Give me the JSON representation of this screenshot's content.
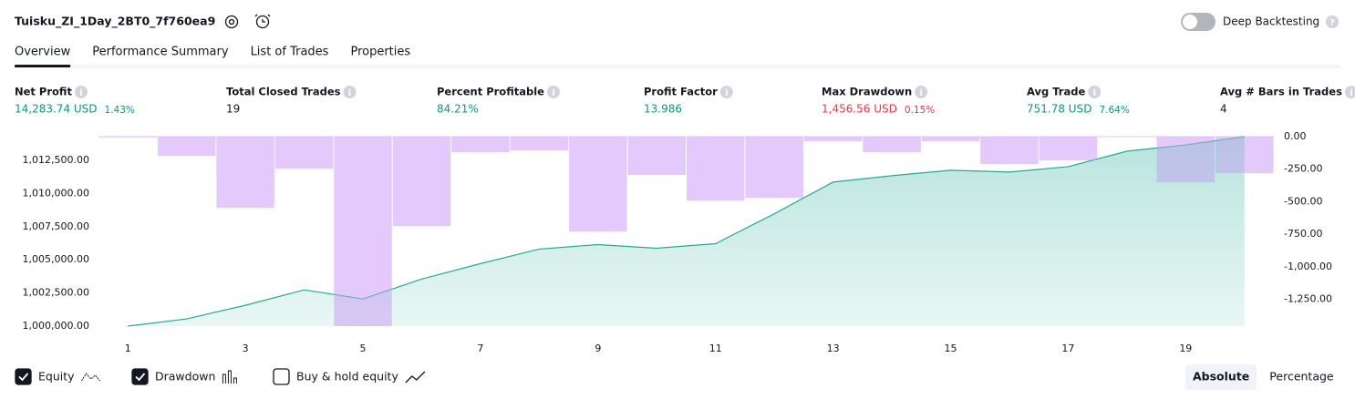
{
  "header": {
    "title": "Tuisku_ZI_1Day_2BT0_7f760ea9",
    "toggle_label": "Deep Backtesting"
  },
  "tabs": [
    "Overview",
    "Performance Summary",
    "List of Trades",
    "Properties"
  ],
  "active_tab": 0,
  "metrics": [
    {
      "label": "Net Profit",
      "value": "14,283.74 USD",
      "percent": "1.43%",
      "color": "#089981"
    },
    {
      "label": "Total Closed Trades",
      "value": "19",
      "color": "#131722"
    },
    {
      "label": "Percent Profitable",
      "value": "84.21%",
      "color": "#089981"
    },
    {
      "label": "Profit Factor",
      "value": "13.986",
      "color": "#089981"
    },
    {
      "label": "Max Drawdown",
      "value": "1,456.56 USD",
      "percent": "0.15%",
      "color": "#f23645"
    },
    {
      "label": "Avg Trade",
      "value": "751.78 USD",
      "percent": "7.64%",
      "color": "#089981"
    },
    {
      "label": "Avg # Bars in Trades",
      "value": "4",
      "color": "#131722"
    }
  ],
  "chart_data": {
    "type": "combo",
    "categories": [
      "1",
      null,
      "3",
      null,
      "5",
      null,
      "7",
      null,
      "9",
      null,
      "11",
      null,
      "13",
      null,
      "15",
      null,
      "17",
      null,
      "19",
      null
    ],
    "series": [
      {
        "name": "Drawdown",
        "kind": "bar",
        "axis": "y2",
        "color": "#e1c4fb",
        "values": [
          -5,
          -147,
          -548,
          -246,
          -1456.56,
          -688,
          -119,
          -105,
          -730,
          -295,
          -492,
          -470,
          -35,
          -119,
          -35,
          -211,
          -183,
          -2,
          -351,
          -281
        ]
      },
      {
        "name": "Equity",
        "kind": "area",
        "axis": "y",
        "color": "#22ab94",
        "values": [
          1000000,
          1000546,
          1001571,
          1002732,
          1002049,
          1003552,
          1004713,
          1005806,
          1006148,
          1005874,
          1006216,
          1008470,
          1010861,
          1011339,
          1011749,
          1011612,
          1012022,
          1013183,
          1013661,
          1014283.74
        ]
      }
    ],
    "ylim": [
      1000000,
      1014283.74
    ],
    "yticks": [
      {
        "value": 1000000,
        "label": "1,000,000.00"
      },
      {
        "value": 1002500,
        "label": "1,002,500.00"
      },
      {
        "value": 1005000,
        "label": "1,005,000.00"
      },
      {
        "value": 1007500,
        "label": "1,007,500.00"
      },
      {
        "value": 1010000,
        "label": "1,010,000.00"
      },
      {
        "value": 1012500,
        "label": "1,012,500.00"
      }
    ],
    "y2lim": [
      -1456.56,
      0
    ],
    "y2ticks": [
      {
        "value": 0,
        "label": "0.00"
      },
      {
        "value": -250,
        "label": "-250.00"
      },
      {
        "value": -500,
        "label": "-500.00"
      },
      {
        "value": -750,
        "label": "-750.00"
      },
      {
        "value": -1000,
        "label": "-1,000.00"
      },
      {
        "value": -1250,
        "label": "-1,250.00"
      }
    ]
  },
  "legend": [
    {
      "name": "Equity",
      "checked": true
    },
    {
      "name": "Drawdown",
      "checked": true
    },
    {
      "name": "Buy & hold equity",
      "checked": false
    }
  ],
  "view_buttons": [
    "Absolute",
    "Percentage"
  ],
  "active_view": 0
}
